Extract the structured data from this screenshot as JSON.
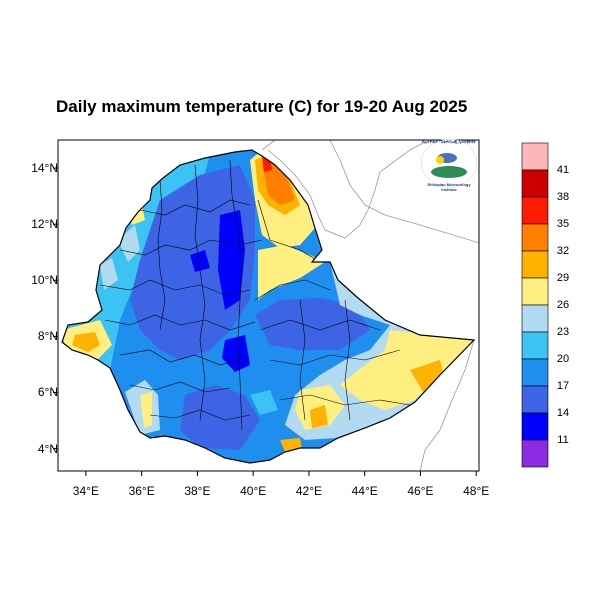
{
  "title": "Daily maximum temperature (C) for 19-20 Aug 2025",
  "axes": {
    "y_ticks": [
      {
        "value": 14,
        "label": "14°N"
      },
      {
        "value": 12,
        "label": "12°N"
      },
      {
        "value": 10,
        "label": "10°N"
      },
      {
        "value": 8,
        "label": "8°N"
      },
      {
        "value": 6,
        "label": "6°N"
      },
      {
        "value": 4,
        "label": "4°N"
      }
    ],
    "x_ticks": [
      {
        "value": 34,
        "label": "34°E"
      },
      {
        "value": 36,
        "label": "36°E"
      },
      {
        "value": 38,
        "label": "38°E"
      },
      {
        "value": 40,
        "label": "40°E"
      },
      {
        "value": 42,
        "label": "42°E"
      },
      {
        "value": 44,
        "label": "44°E"
      },
      {
        "value": 46,
        "label": "46°E"
      },
      {
        "value": 48,
        "label": "48°E"
      }
    ],
    "lon_range": [
      33,
      48.1
    ],
    "lat_range": [
      3.2,
      15
    ]
  },
  "colorbar": {
    "colors": [
      "#ffb6b8",
      "#cc0000",
      "#ff1a00",
      "#ff8000",
      "#ffb300",
      "#ffef80",
      "#b2daf0",
      "#3ac3f3",
      "#1e8fef",
      "#3e64e6",
      "#0000ff",
      "#8a2be2"
    ],
    "labels": [
      "41",
      "38",
      "35",
      "32",
      "29",
      "26",
      "23",
      "20",
      "17",
      "14",
      "11"
    ]
  },
  "logo": {
    "text_top": "የኢትዮጵያ ሜቴዎሮሎጂ ኢንስቲትዩት",
    "text_bottom": "Ethiopian Meteorology Institute"
  }
}
